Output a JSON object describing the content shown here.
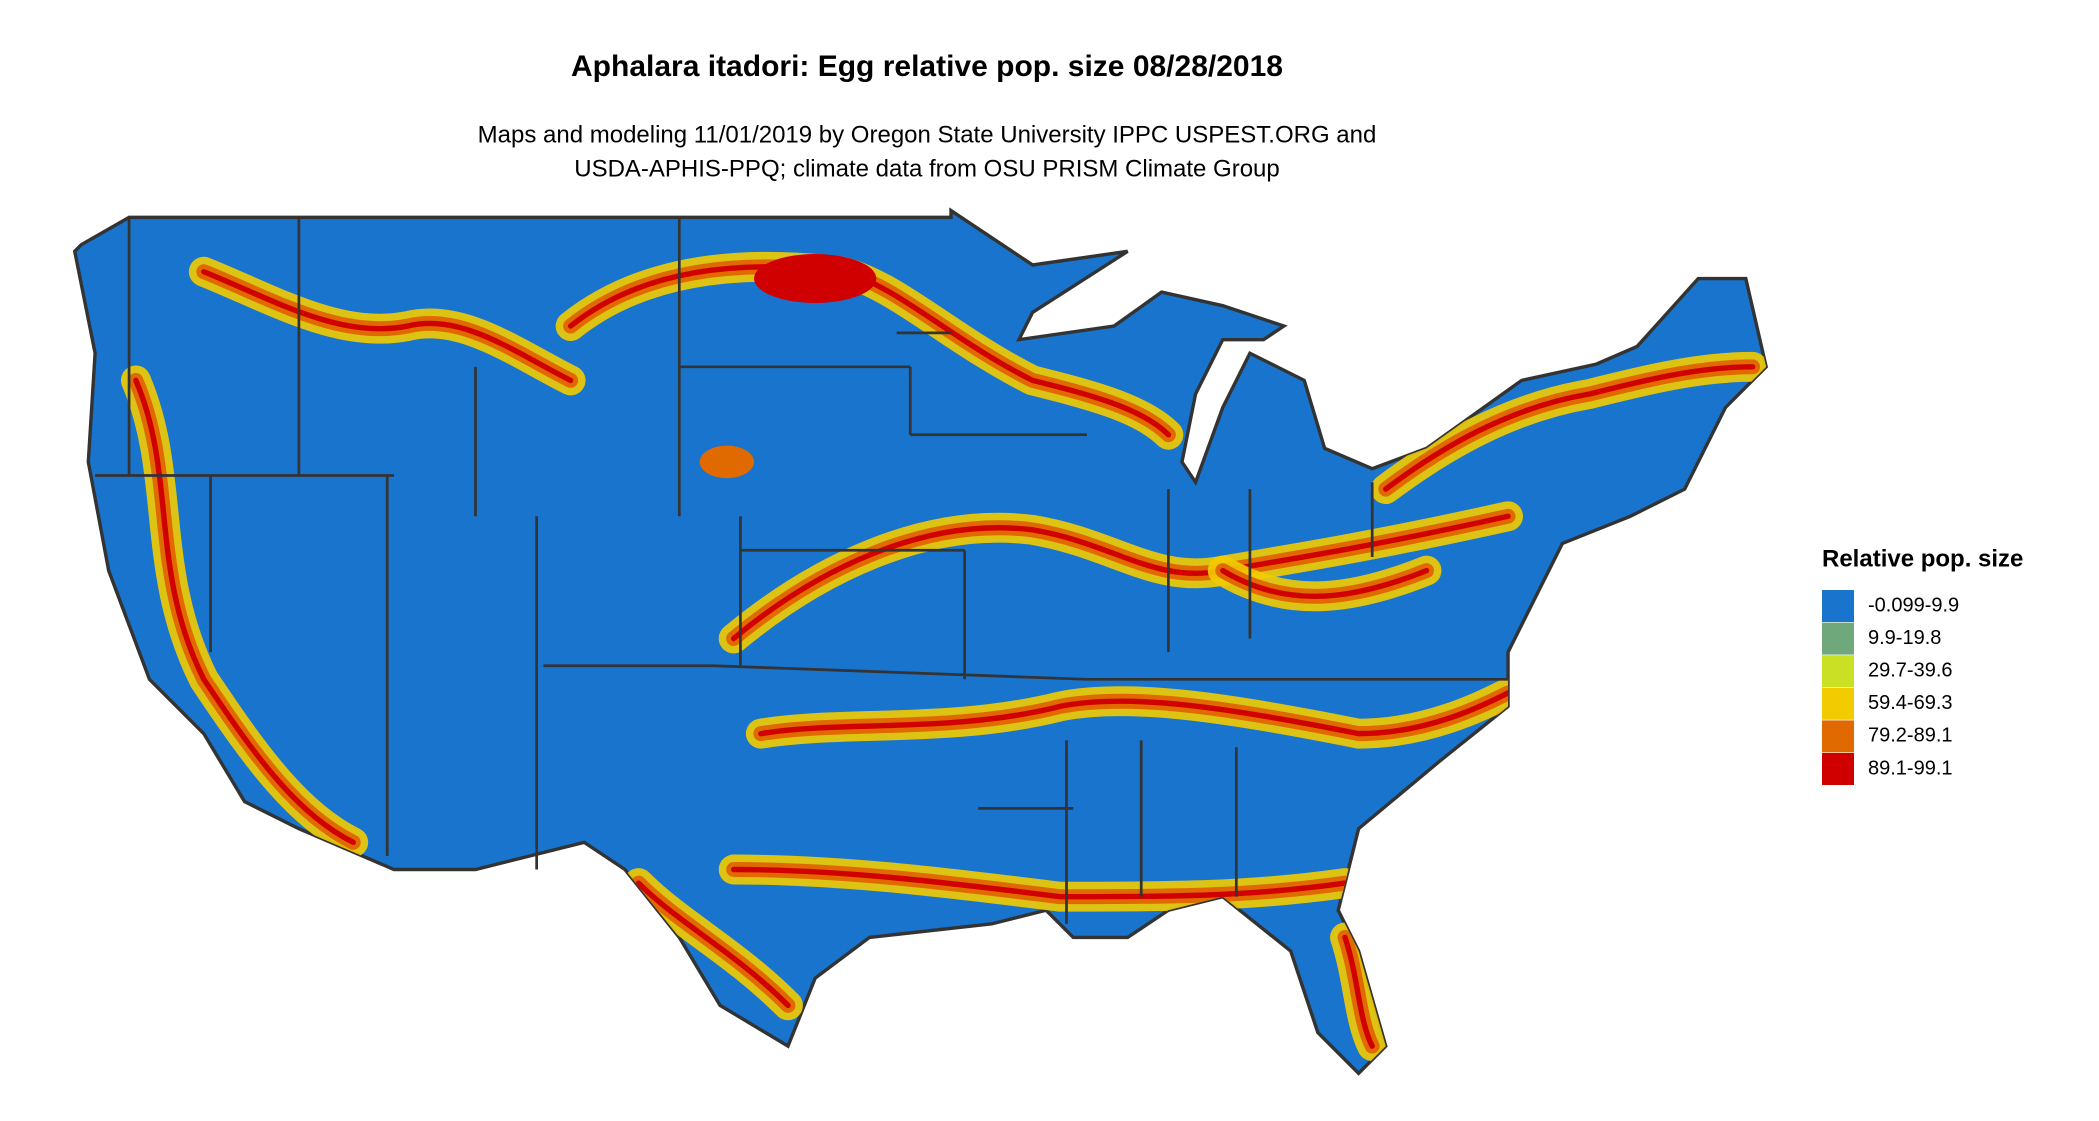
{
  "title": "Aphalara itadori: Egg relative pop. size 08/28/2018",
  "subtitle": [
    "Maps and modeling 11/01/2019 by Oregon State University IPPC USPEST.ORG and",
    "USDA-APHIS-PPQ; climate data from OSU PRISM Climate Group"
  ],
  "legend": {
    "title": "Relative pop. size",
    "items": [
      {
        "label": "-0.099-9.9",
        "color": "#1874cd"
      },
      {
        "label": "9.9-19.8",
        "color": "#6fa87a"
      },
      {
        "label": "29.7-39.6",
        "color": "#c9e024"
      },
      {
        "label": "59.4-69.3",
        "color": "#f3cc00"
      },
      {
        "label": "79.2-89.1",
        "color": "#e06a00"
      },
      {
        "label": "89.1-99.1",
        "color": "#d10000"
      }
    ]
  }
}
